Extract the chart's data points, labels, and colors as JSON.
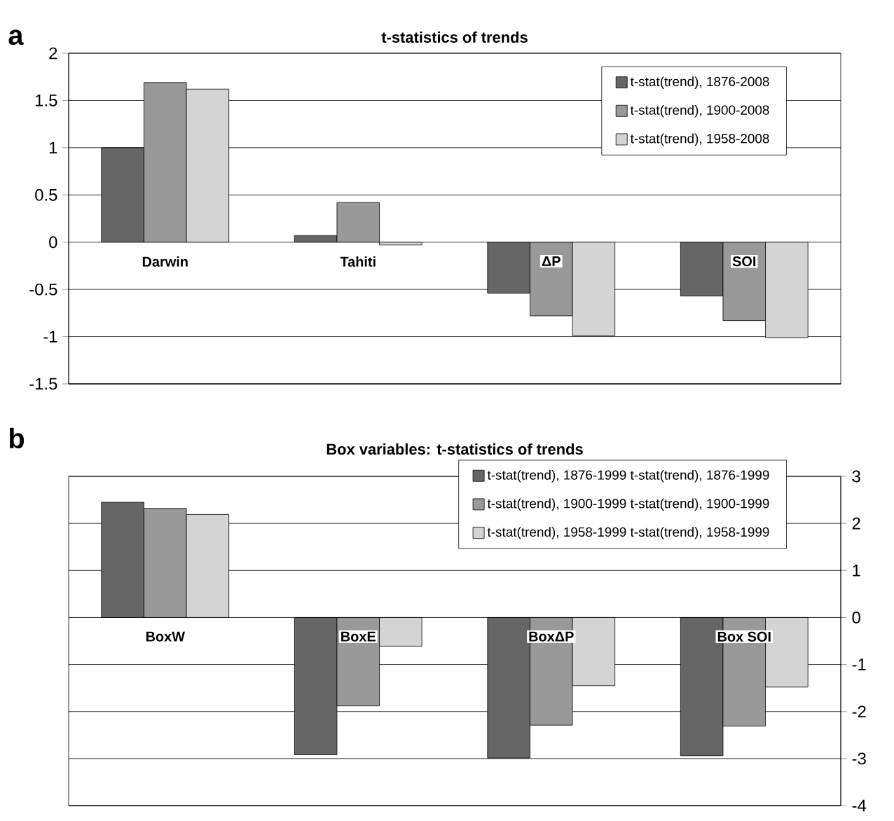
{
  "chart_data": [
    {
      "type": "bar",
      "title": "t-statistics of trends",
      "annotations": [
        "a"
      ],
      "categories": [
        "Darwin",
        "Tahiti",
        "ΔP",
        "SOI"
      ],
      "series": [
        {
          "name": "t-stat(trend), 1876-2008",
          "color": "#666666",
          "values": [
            1.0,
            0.07,
            -0.54,
            -0.57
          ]
        },
        {
          "name": "t-stat(trend), 1900-2008",
          "color": "#999999",
          "values": [
            1.69,
            0.42,
            -0.78,
            -0.83
          ]
        },
        {
          "name": "t-stat(trend), 1958-2008",
          "color": "#d4d4d4",
          "values": [
            1.62,
            -0.03,
            -0.99,
            -1.01
          ]
        }
      ],
      "ylim": [
        -1.5,
        2
      ],
      "yticks": [
        -1.5,
        -1,
        -0.5,
        0,
        0.5,
        1,
        1.5,
        2
      ],
      "grid": "y",
      "legend": "top right"
    },
    {
      "type": "bar",
      "title": "Box variables: t-statistics of trends",
      "annotations": [
        "b"
      ],
      "categories": [
        "BoxW",
        "BoxE",
        "BoxΔP",
        "Box SOI"
      ],
      "series": [
        {
          "name": "t-stat(trend), 1876-1999 t-stat(trend), 1876-1999",
          "color": "#666666",
          "values": [
            2.45,
            -2.92,
            -2.99,
            -2.94
          ]
        },
        {
          "name": "t-stat(trend), 1900-1999 t-stat(trend), 1900-1999",
          "color": "#999999",
          "values": [
            2.32,
            -1.88,
            -2.29,
            -2.31
          ]
        },
        {
          "name": "t-stat(trend), 1958-1999 t-stat(trend), 1958-1999",
          "color": "#d4d4d4",
          "values": [
            2.19,
            -0.61,
            -1.45,
            -1.48
          ]
        }
      ],
      "ylim": [
        -4,
        3
      ],
      "yticks": [
        -4,
        -3,
        -2,
        -1,
        0,
        1,
        2,
        3
      ],
      "grid": "y",
      "legend": "top right"
    }
  ]
}
